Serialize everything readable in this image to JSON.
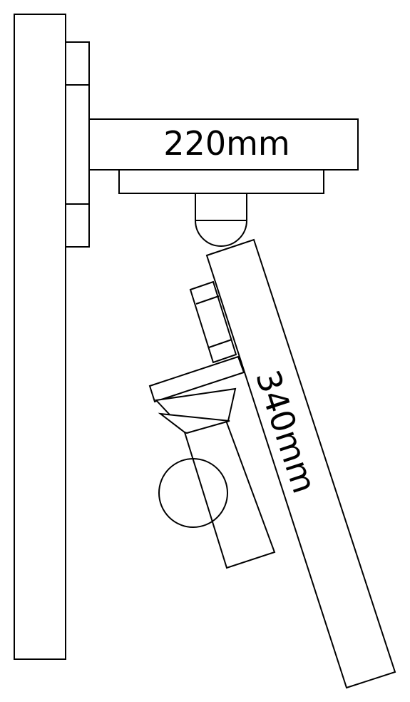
{
  "labels": {
    "upper_arm_length": "220mm",
    "lower_arm_length": "340mm"
  },
  "colors": {
    "stroke": "#000000",
    "background": "#ffffff"
  }
}
